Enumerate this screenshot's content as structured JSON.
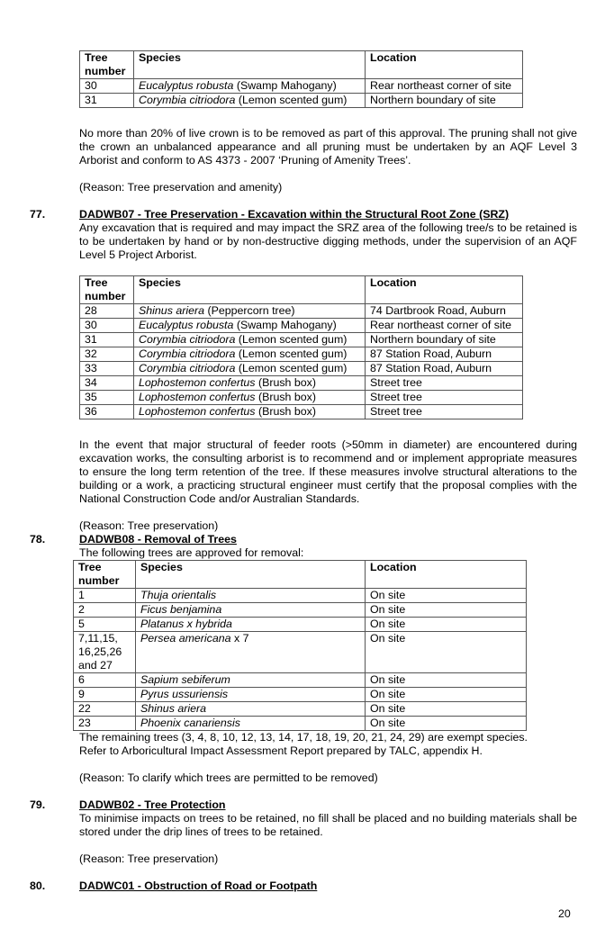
{
  "table_headers": {
    "number": "Tree number",
    "species": "Species",
    "location": "Location"
  },
  "table_pruning": [
    {
      "number": "30",
      "species": "Eucalyptus robusta",
      "common": " (Swamp Mahogany)",
      "location": "Rear northeast corner of site"
    },
    {
      "number": "31",
      "species": "Corymbia citriodora",
      "common": " (Lemon scented gum)",
      "location": "Northern boundary of site"
    }
  ],
  "pruning_text": "No more than 20% of live crown is to be removed as part of this approval. The pruning shall not give the crown an unbalanced appearance and all pruning must be undertaken by an AQF Level 3 Arborist and conform to AS 4373 - 2007 ‘Pruning of Amenity Trees’.",
  "pruning_reason": "(Reason: Tree preservation and amenity)",
  "c77": {
    "number": "77.",
    "heading": "DADWB07 - Tree Preservation - Excavation within the Structural Root Zone (SRZ)",
    "text": "Any excavation that is required and may impact the SRZ area of the following tree/s to be retained is to be undertaken by hand or by non-destructive digging methods, under the supervision of an AQF Level 5 Project Arborist.",
    "rows": [
      {
        "number": "28",
        "species": "Shinus ariera",
        "common": " (Peppercorn tree)",
        "location": "74 Dartbrook Road, Auburn"
      },
      {
        "number": "30",
        "species": "Eucalyptus robusta",
        "common": " (Swamp Mahogany)",
        "location": "Rear northeast corner of site"
      },
      {
        "number": "31",
        "species": "Corymbia citriodora",
        "common": " (Lemon scented gum)",
        "location": "Northern boundary of site"
      },
      {
        "number": "32",
        "species": "Corymbia citriodora",
        "common": " (Lemon scented gum)",
        "location": "87 Station Road, Auburn"
      },
      {
        "number": "33",
        "species": "Corymbia citriodora",
        "common": " (Lemon scented gum)",
        "location": "87 Station Road, Auburn"
      },
      {
        "number": "34",
        "species": "Lophostemon confertus",
        "common": " (Brush box)",
        "location": "Street tree"
      },
      {
        "number": "35",
        "species": "Lophostemon confertus",
        "common": " (Brush box)",
        "location": "Street tree"
      },
      {
        "number": "36",
        "species": "Lophostemon confertus",
        "common": " (Brush box)",
        "location": "Street tree"
      }
    ],
    "text2": "In the event that major structural of feeder roots (>50mm in diameter) are encountered during excavation works, the consulting arborist is to recommend and or implement appropriate measures to ensure the long term retention of the tree. If these measures involve structural alterations to the building or a work, a practicing structural engineer must certify that the proposal complies with the National Construction Code and/or Australian Standards.",
    "reason": "(Reason: Tree preservation)"
  },
  "c78": {
    "number": "78.",
    "heading": "DADWB08 - Removal of Trees",
    "intro": "The following trees are approved for removal:",
    "rows": [
      {
        "number": "1",
        "species": "Thuja orientalis",
        "common": "",
        "location": "On site"
      },
      {
        "number": "2",
        "species": "Ficus benjamina",
        "common": "",
        "location": "On site"
      },
      {
        "number": "5",
        "species": "Platanus x hybrida",
        "common": "",
        "location": "On site"
      },
      {
        "number": "7,11,15, 16,25,26 and 27",
        "species": "Persea americana",
        "common": " x 7",
        "location": "On site"
      },
      {
        "number": "6",
        "species": "Sapium sebiferum",
        "common": "",
        "location": "On site"
      },
      {
        "number": "9",
        "species": "Pyrus ussuriensis",
        "common": "",
        "location": "On site"
      },
      {
        "number": "22",
        "species": "Shinus ariera",
        "common": "",
        "location": "On site"
      },
      {
        "number": "23",
        "species": "Phoenix canariensis",
        "common": "",
        "location": "On site"
      }
    ],
    "remaining": "The remaining trees (3, 4, 8, 10, 12, 13, 14, 17, 18, 19, 20, 21, 24, 29) are exempt species.",
    "refer": "Refer to Arboricultural Impact Assessment Report  prepared by TALC, appendix H.",
    "reason": "(Reason: To clarify which trees are permitted to be removed)"
  },
  "c79": {
    "number": "79.",
    "heading": "DADWB02 - Tree Protection",
    "text": "To minimise impacts on trees to be retained, no fill shall be placed and no building materials shall be stored under the drip lines of trees to be retained.",
    "reason": "(Reason: Tree preservation)"
  },
  "c80": {
    "number": "80.",
    "heading": "DADWC01 - Obstruction of Road or Footpath"
  },
  "page_number": "20"
}
